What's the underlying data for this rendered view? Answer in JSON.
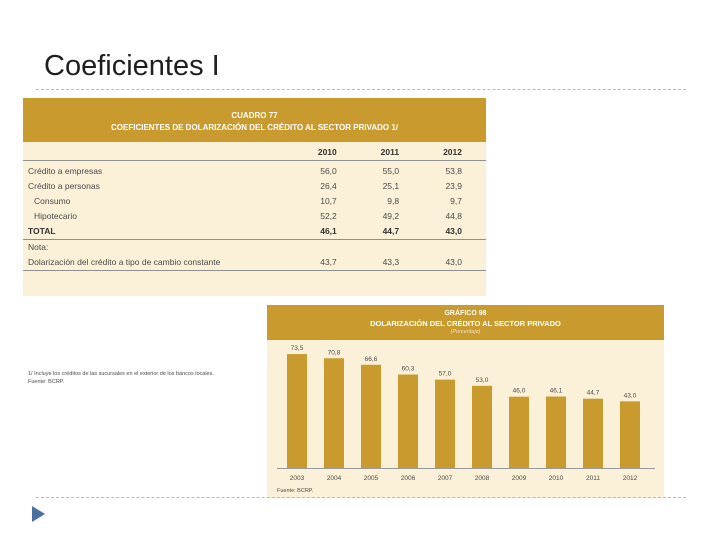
{
  "slide": {
    "title": "Coeficientes I"
  },
  "table": {
    "number": "CUADRO 77",
    "title": "COEFICIENTES DE DOLARIZACIÓN DEL CRÉDITO AL SECTOR PRIVADO 1/",
    "columns": [
      "2010",
      "2011",
      "2012"
    ],
    "rows": [
      {
        "label": "Crédito a empresas",
        "values": [
          "56,0",
          "55,0",
          "53,8"
        ]
      },
      {
        "label": "Crédito a personas",
        "values": [
          "26,4",
          "25,1",
          "23,9"
        ]
      },
      {
        "label": "Consumo",
        "values": [
          "10,7",
          "9,8",
          "9,7"
        ]
      },
      {
        "label": "Hipotecario",
        "values": [
          "52,2",
          "49,2",
          "44,8"
        ]
      },
      {
        "label": "TOTAL",
        "values": [
          "46,1",
          "44,7",
          "43,0"
        ]
      },
      {
        "label": "Nota:",
        "values": [
          "",
          "",
          ""
        ]
      },
      {
        "label": "Dolarización del crédito a tipo de cambio constante",
        "values": [
          "43,7",
          "43,3",
          "43,0"
        ]
      }
    ],
    "footnote": "1/ Incluye los créditos de las sucursales en el exterior de los bancos locales.",
    "source": "Fuente: BCRP."
  },
  "chart_data": {
    "type": "bar",
    "number": "GRÁFICO 98",
    "title": "DOLARIZACIÓN DEL CRÉDITO AL SECTOR PRIVADO",
    "unit": "(Porcentaje)",
    "categories": [
      "2003",
      "2004",
      "2005",
      "2006",
      "2007",
      "2008",
      "2009",
      "2010",
      "2011",
      "2012"
    ],
    "values": [
      73.5,
      70.8,
      66.6,
      60.3,
      57.0,
      53.0,
      46.0,
      46.1,
      44.7,
      43.0
    ],
    "labels": [
      "73,5",
      "70,8",
      "66,6",
      "60,3",
      "57,0",
      "53,0",
      "46,0",
      "46,1",
      "44,7",
      "43,0"
    ],
    "ylim": [
      0,
      80
    ],
    "color": "#c99a2e",
    "source": "Fuente: BCRP."
  }
}
